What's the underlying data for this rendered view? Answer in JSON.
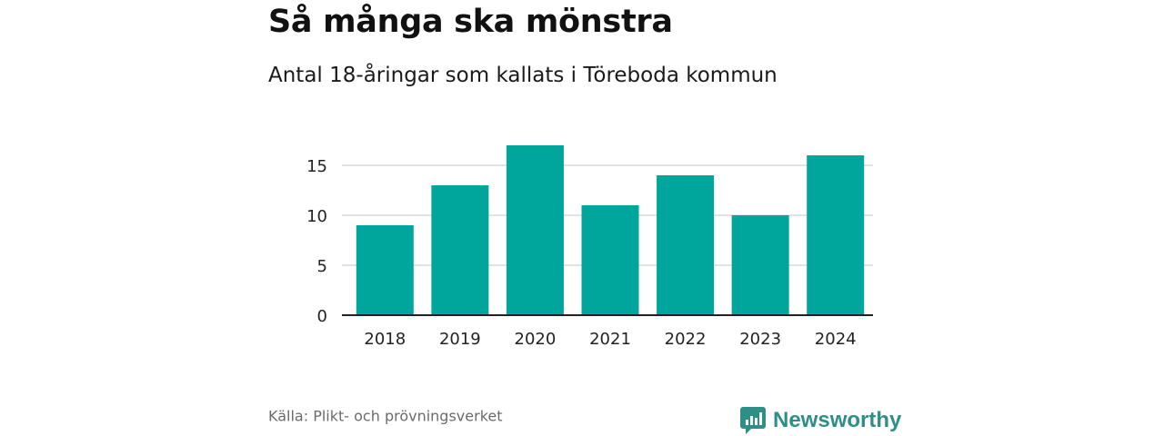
{
  "chart_data": {
    "type": "bar",
    "title": "Så många ska mönstra",
    "subtitle": "Antal 18-åringar som kallats i Töreboda kommun",
    "categories": [
      "2018",
      "2019",
      "2020",
      "2021",
      "2022",
      "2023",
      "2024"
    ],
    "values": [
      9,
      13,
      17,
      11,
      14,
      10,
      16
    ],
    "yticks": [
      "0",
      "5",
      "10",
      "15"
    ],
    "ylim": [
      0,
      17
    ],
    "xlabel": "",
    "ylabel": "",
    "grid": true,
    "bar_color": "#00a59b"
  },
  "footer": {
    "source": "Källa: Plikt- och prövningsverket",
    "brand": "Newsworthy",
    "brand_color": "#2e8f86",
    "logo": "newsworthy-logo-icon"
  }
}
